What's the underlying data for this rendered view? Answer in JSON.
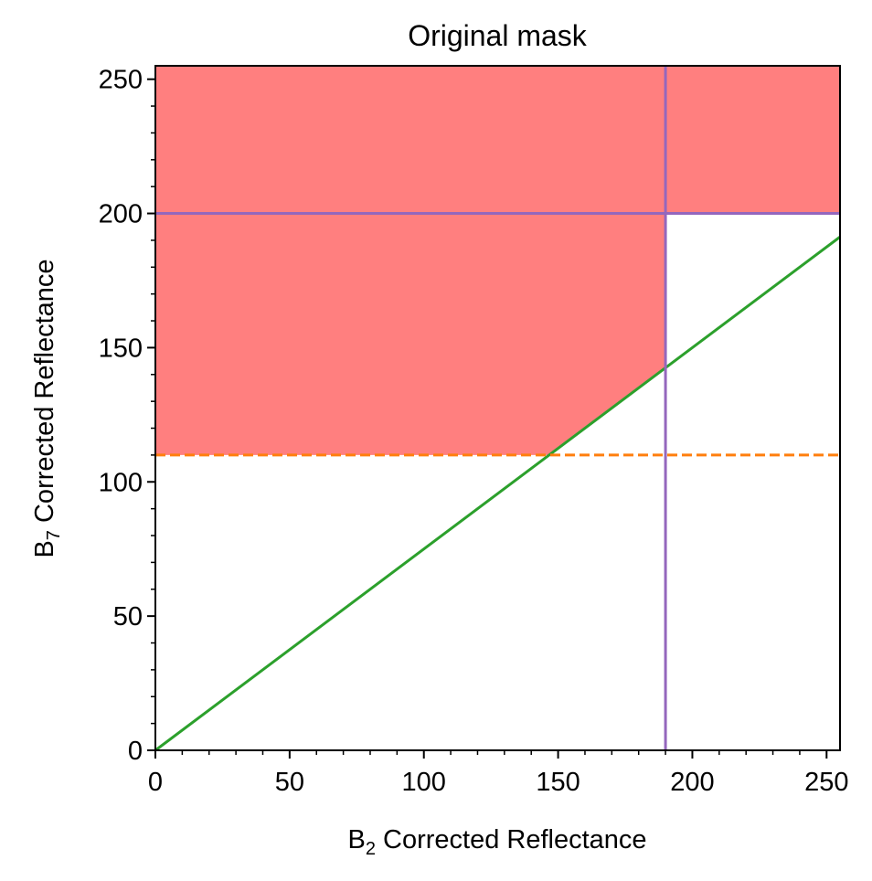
{
  "chart_data": {
    "type": "line",
    "title": "Original mask",
    "xlabel": {
      "prefix": "B",
      "sub": "2",
      "rest": " Corrected Reflectance"
    },
    "ylabel": {
      "prefix": "B",
      "sub": "7",
      "rest": " Corrected Reflectance"
    },
    "xlim": [
      0,
      255
    ],
    "ylim": [
      0,
      255
    ],
    "xticks": [
      0,
      50,
      100,
      150,
      200,
      250
    ],
    "yticks": [
      0,
      50,
      100,
      150,
      200,
      250
    ],
    "xminor_step": 10,
    "yminor_step": 10,
    "grid": false,
    "masked_regions": [
      {
        "color": "#ff7f7f",
        "polygon": [
          [
            0,
            110
          ],
          [
            0,
            255
          ],
          [
            255,
            255
          ],
          [
            255,
            200
          ],
          [
            190,
            200
          ],
          [
            190,
            142.5
          ],
          [
            146.7,
            110
          ]
        ]
      }
    ],
    "series": [
      {
        "color": "#2ca02c",
        "style": "solid",
        "x": [
          0,
          255
        ],
        "y": [
          0,
          191.25
        ]
      },
      {
        "color": "#ff7f0e",
        "style": "dashed",
        "x": [
          0,
          255
        ],
        "y": [
          110,
          110
        ]
      },
      {
        "color": "#9467bd",
        "style": "solid",
        "x": [
          190,
          190
        ],
        "y": [
          0,
          255
        ]
      },
      {
        "color": "#9467bd",
        "style": "solid",
        "x": [
          0,
          255
        ],
        "y": [
          200,
          200
        ]
      }
    ]
  }
}
